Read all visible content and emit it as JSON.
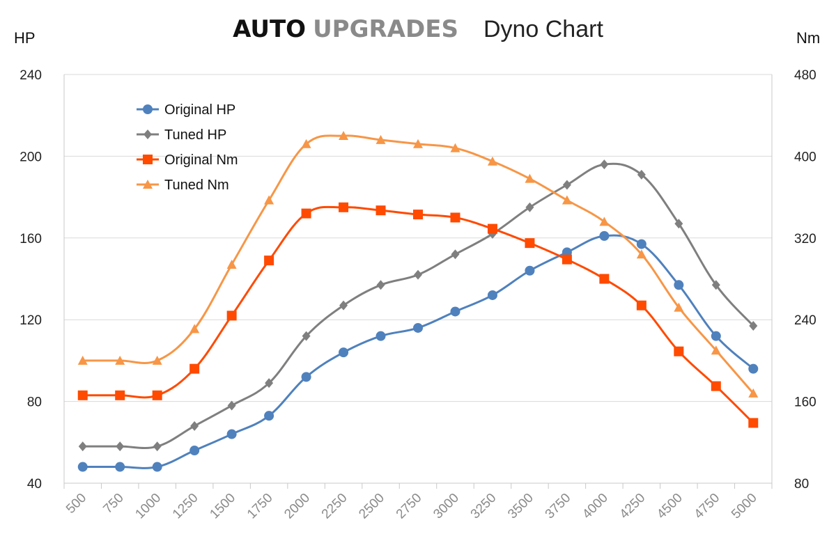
{
  "header": {
    "brand_bold": "AUTO",
    "brand_light": "UPGRADES",
    "title": "Dyno Chart"
  },
  "chart_data": {
    "type": "line",
    "title": "AUTO UPGRADES Dyno Chart",
    "categories": [
      "500",
      "750",
      "1000",
      "1250",
      "1500",
      "1750",
      "2000",
      "2250",
      "2500",
      "2750",
      "3000",
      "3250",
      "3500",
      "3750",
      "4000",
      "4250",
      "4500",
      "4750",
      "5000"
    ],
    "y_left": {
      "label": "HP",
      "range": [
        40,
        240
      ],
      "ticks": [
        40,
        80,
        120,
        160,
        200,
        240
      ]
    },
    "y_right": {
      "label": "Nm",
      "range": [
        80,
        480
      ],
      "ticks": [
        80,
        160,
        240,
        320,
        400,
        480
      ]
    },
    "grid": true,
    "legend_position": "top-left",
    "series": [
      {
        "name": "Original HP",
        "axis": "left",
        "marker": "circle",
        "color": "#4f81bd",
        "values": [
          48,
          48,
          48,
          56,
          64,
          73,
          92,
          104,
          112,
          116,
          124,
          132,
          144,
          153,
          161,
          157,
          137,
          112,
          96
        ]
      },
      {
        "name": "Tuned HP",
        "axis": "left",
        "marker": "diamond",
        "color": "#7f7f7f",
        "values": [
          58,
          58,
          58,
          68,
          78,
          89,
          112,
          127,
          137,
          142,
          152,
          162,
          175,
          186,
          196,
          191,
          167,
          137,
          117
        ]
      },
      {
        "name": "Original Nm",
        "axis": "right",
        "marker": "square",
        "color": "#ff4a00",
        "values": [
          166,
          166,
          166,
          192,
          244,
          298,
          344,
          350,
          347,
          343,
          340,
          329,
          315,
          299,
          280,
          254,
          209,
          175,
          139
        ]
      },
      {
        "name": "Tuned Nm",
        "axis": "right",
        "marker": "triangle",
        "color": "#f79646",
        "values": [
          200,
          200,
          200,
          231,
          294,
          357,
          412,
          420,
          416,
          412,
          408,
          395,
          378,
          357,
          336,
          304,
          252,
          210,
          168
        ]
      }
    ]
  }
}
